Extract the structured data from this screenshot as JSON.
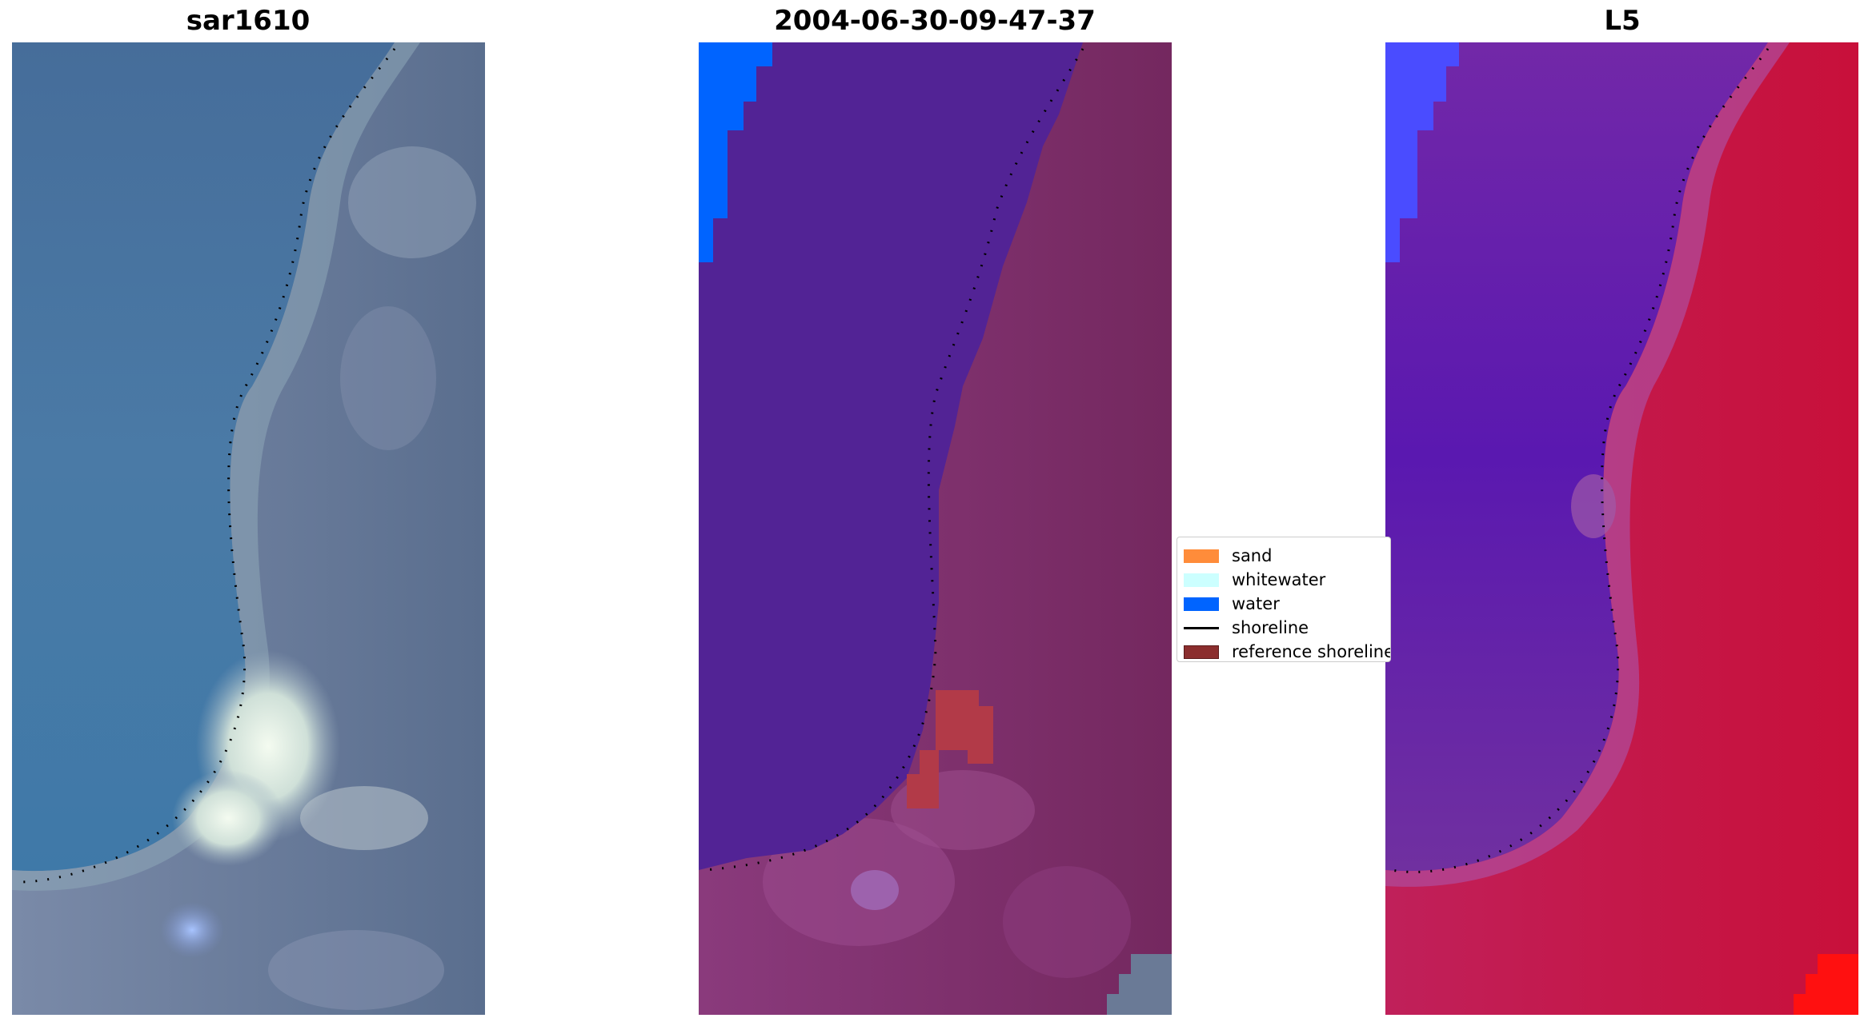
{
  "panels": [
    {
      "title": "sar1610"
    },
    {
      "title": "2004-06-30-09-47-37"
    },
    {
      "title": "L5"
    }
  ],
  "legend": {
    "items": [
      {
        "label": "sand",
        "color": "#ff8c3a",
        "kind": "patch"
      },
      {
        "label": "whitewater",
        "color": "#ccffff",
        "kind": "patch"
      },
      {
        "label": "water",
        "color": "#0064ff",
        "kind": "patch"
      },
      {
        "label": "shoreline",
        "color": "#000000",
        "kind": "line"
      },
      {
        "label": "reference shoreline",
        "color": "#8b2e2e",
        "kind": "patch"
      }
    ]
  },
  "colors": {
    "rgb_sea": "#3f6b9c",
    "rgb_land": "#6a7a96",
    "class_water_body": "#522395",
    "class_land": "#7a2a6b",
    "class_water": "#0064ff",
    "class_reference": "#b23a48",
    "index_water": "#5a1fa8",
    "index_land": "#c4154a"
  }
}
